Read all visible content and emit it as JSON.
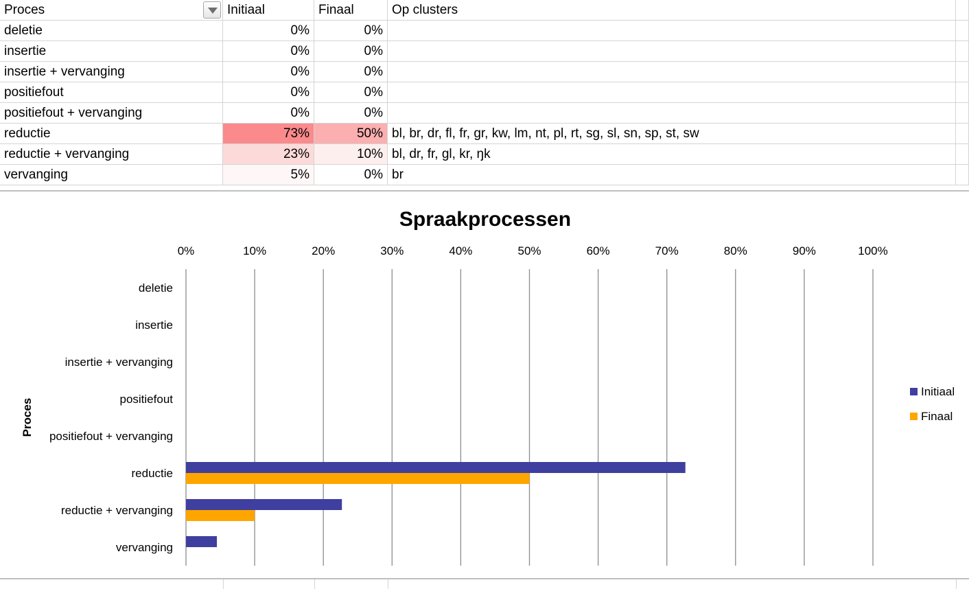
{
  "sheet": {
    "headers": {
      "proces": "Proces",
      "initiaal": "Initiaal",
      "finaal": "Finaal",
      "clusters": "Op clusters"
    },
    "rows": [
      {
        "proces": "deletie",
        "initiaal": "0%",
        "finaal": "0%",
        "clusters": "",
        "init_value": 0,
        "fin_value": 0
      },
      {
        "proces": "insertie",
        "initiaal": "0%",
        "finaal": "0%",
        "clusters": "",
        "init_value": 0,
        "fin_value": 0
      },
      {
        "proces": "insertie + vervanging",
        "initiaal": "0%",
        "finaal": "0%",
        "clusters": "",
        "init_value": 0,
        "fin_value": 0
      },
      {
        "proces": "positiefout",
        "initiaal": "0%",
        "finaal": "0%",
        "clusters": "",
        "init_value": 0,
        "fin_value": 0
      },
      {
        "proces": "positiefout + vervanging",
        "initiaal": "0%",
        "finaal": "0%",
        "clusters": "",
        "init_value": 0,
        "fin_value": 0
      },
      {
        "proces": "reductie",
        "initiaal": "73%",
        "finaal": "50%",
        "clusters": "bl, br, dr, fl, fr, gr, kw, lm, nt, pl, rt, sg, sl, sn, sp, st, sw",
        "init_value": 73,
        "fin_value": 50
      },
      {
        "proces": "reductie + vervanging",
        "initiaal": "23%",
        "finaal": "10%",
        "clusters": "bl, dr, fr, gl, kr, ŋk",
        "init_value": 23,
        "fin_value": 10
      },
      {
        "proces": "vervanging",
        "initiaal": "5%",
        "finaal": "0%",
        "clusters": "br",
        "init_value": 5,
        "fin_value": 0
      }
    ],
    "heat_color": "#f8696b"
  },
  "chart_data": {
    "type": "bar",
    "orientation": "horizontal",
    "title": "Spraakprocessen",
    "ylabel": "Proces",
    "xlabel": "",
    "categories": [
      "deletie",
      "insertie",
      "insertie + vervanging",
      "positiefout",
      "positiefout + vervanging",
      "reductie",
      "reductie + vervanging",
      "vervanging"
    ],
    "series": [
      {
        "name": "Initiaal",
        "values": [
          0,
          0,
          0,
          0,
          0,
          72.7,
          22.7,
          4.5
        ],
        "color": "#3f3f9f"
      },
      {
        "name": "Finaal",
        "values": [
          0,
          0,
          0,
          0,
          0,
          50,
          10,
          0
        ],
        "color": "#ffa500"
      }
    ],
    "xlim": [
      0,
      100
    ],
    "xticks": [
      "0%",
      "10%",
      "20%",
      "30%",
      "40%",
      "50%",
      "60%",
      "70%",
      "80%",
      "90%",
      "100%"
    ],
    "x_axis_position": "top",
    "grid": true,
    "legend": "right"
  }
}
